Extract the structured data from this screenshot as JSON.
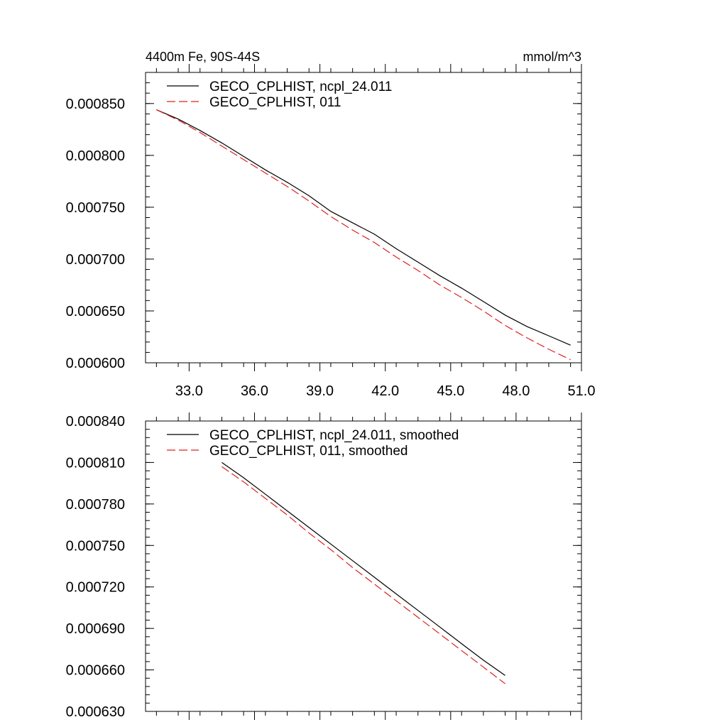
{
  "chart_data": [
    {
      "type": "line",
      "title_left": "4400m Fe, 90S-44S",
      "title_right": "mmol/m^3",
      "xlim": [
        31.0,
        51.0
      ],
      "ylim": [
        0.0006,
        0.00088
      ],
      "x_ticks": [
        33.0,
        36.0,
        39.0,
        42.0,
        45.0,
        48.0,
        51.0
      ],
      "x_tick_labels": [
        "33.0",
        "36.0",
        "39.0",
        "42.0",
        "45.0",
        "48.0",
        "51.0"
      ],
      "y_ticks": [
        0.0006,
        0.00065,
        0.0007,
        0.00075,
        0.0008,
        0.00085
      ],
      "y_tick_labels": [
        "0.000600",
        "0.000650",
        "0.000700",
        "0.000750",
        "0.000800",
        "0.000850"
      ],
      "legend_position": "top-left",
      "grid": false,
      "x": [
        31.5,
        32.5,
        33.5,
        34.5,
        35.5,
        36.5,
        37.5,
        38.5,
        39.5,
        40.5,
        41.5,
        42.5,
        43.5,
        44.5,
        45.5,
        46.5,
        47.5,
        48.5,
        49.5,
        50.5
      ],
      "series": [
        {
          "name": "GECO_CPLHIST, ncpl_24.011",
          "color": "#000000",
          "dash": "solid",
          "values": [
            0.000844,
            0.000835,
            0.000824,
            0.000812,
            0.000799,
            0.000786,
            0.000774,
            0.000761,
            0.000746,
            0.000735,
            0.000724,
            0.00071,
            0.000697,
            0.000684,
            0.000672,
            0.000659,
            0.000646,
            0.000635,
            0.000626,
            0.000617
          ]
        },
        {
          "name": "GECO_CPLHIST, 011",
          "color": "#e02020",
          "dash": "dashed",
          "values": [
            0.000844,
            0.000834,
            0.000822,
            0.000809,
            0.000796,
            0.000783,
            0.00077,
            0.000756,
            0.000741,
            0.000728,
            0.000716,
            0.000702,
            0.000689,
            0.000675,
            0.000663,
            0.00065,
            0.000636,
            0.000624,
            0.000613,
            0.000603
          ]
        }
      ]
    },
    {
      "type": "line",
      "xlim": [
        31.0,
        51.0
      ],
      "ylim": [
        0.00063,
        0.00084
      ],
      "x_ticks": [
        33.0,
        36.0,
        39.0,
        42.0,
        45.0,
        48.0,
        51.0
      ],
      "y_ticks": [
        0.00063,
        0.00066,
        0.00069,
        0.00072,
        0.00075,
        0.00078,
        0.00081,
        0.00084
      ],
      "y_tick_labels": [
        "0.000630",
        "0.000660",
        "0.000690",
        "0.000720",
        "0.000750",
        "0.000780",
        "0.000810",
        "0.000840"
      ],
      "legend_position": "top-left",
      "grid": false,
      "x": [
        34.5,
        35.5,
        36.5,
        37.5,
        38.5,
        39.5,
        40.5,
        41.5,
        42.5,
        43.5,
        44.5,
        45.5,
        46.5,
        47.5
      ],
      "series": [
        {
          "name": "GECO_CPLHIST, ncpl_24.011, smoothed",
          "color": "#000000",
          "dash": "solid",
          "values": [
            0.00081,
            0.000799,
            0.000787,
            0.000775,
            0.000763,
            0.000751,
            0.000739,
            0.000727,
            0.000715,
            0.000703,
            0.000691,
            0.000679,
            0.000667,
            0.000656
          ]
        },
        {
          "name": "GECO_CPLHIST, 011, smoothed",
          "color": "#e02020",
          "dash": "dashed",
          "values": [
            0.000807,
            0.000796,
            0.000784,
            0.000772,
            0.000759,
            0.000747,
            0.000734,
            0.000722,
            0.00071,
            0.000698,
            0.000686,
            0.000674,
            0.000662,
            0.00065
          ]
        }
      ]
    }
  ]
}
